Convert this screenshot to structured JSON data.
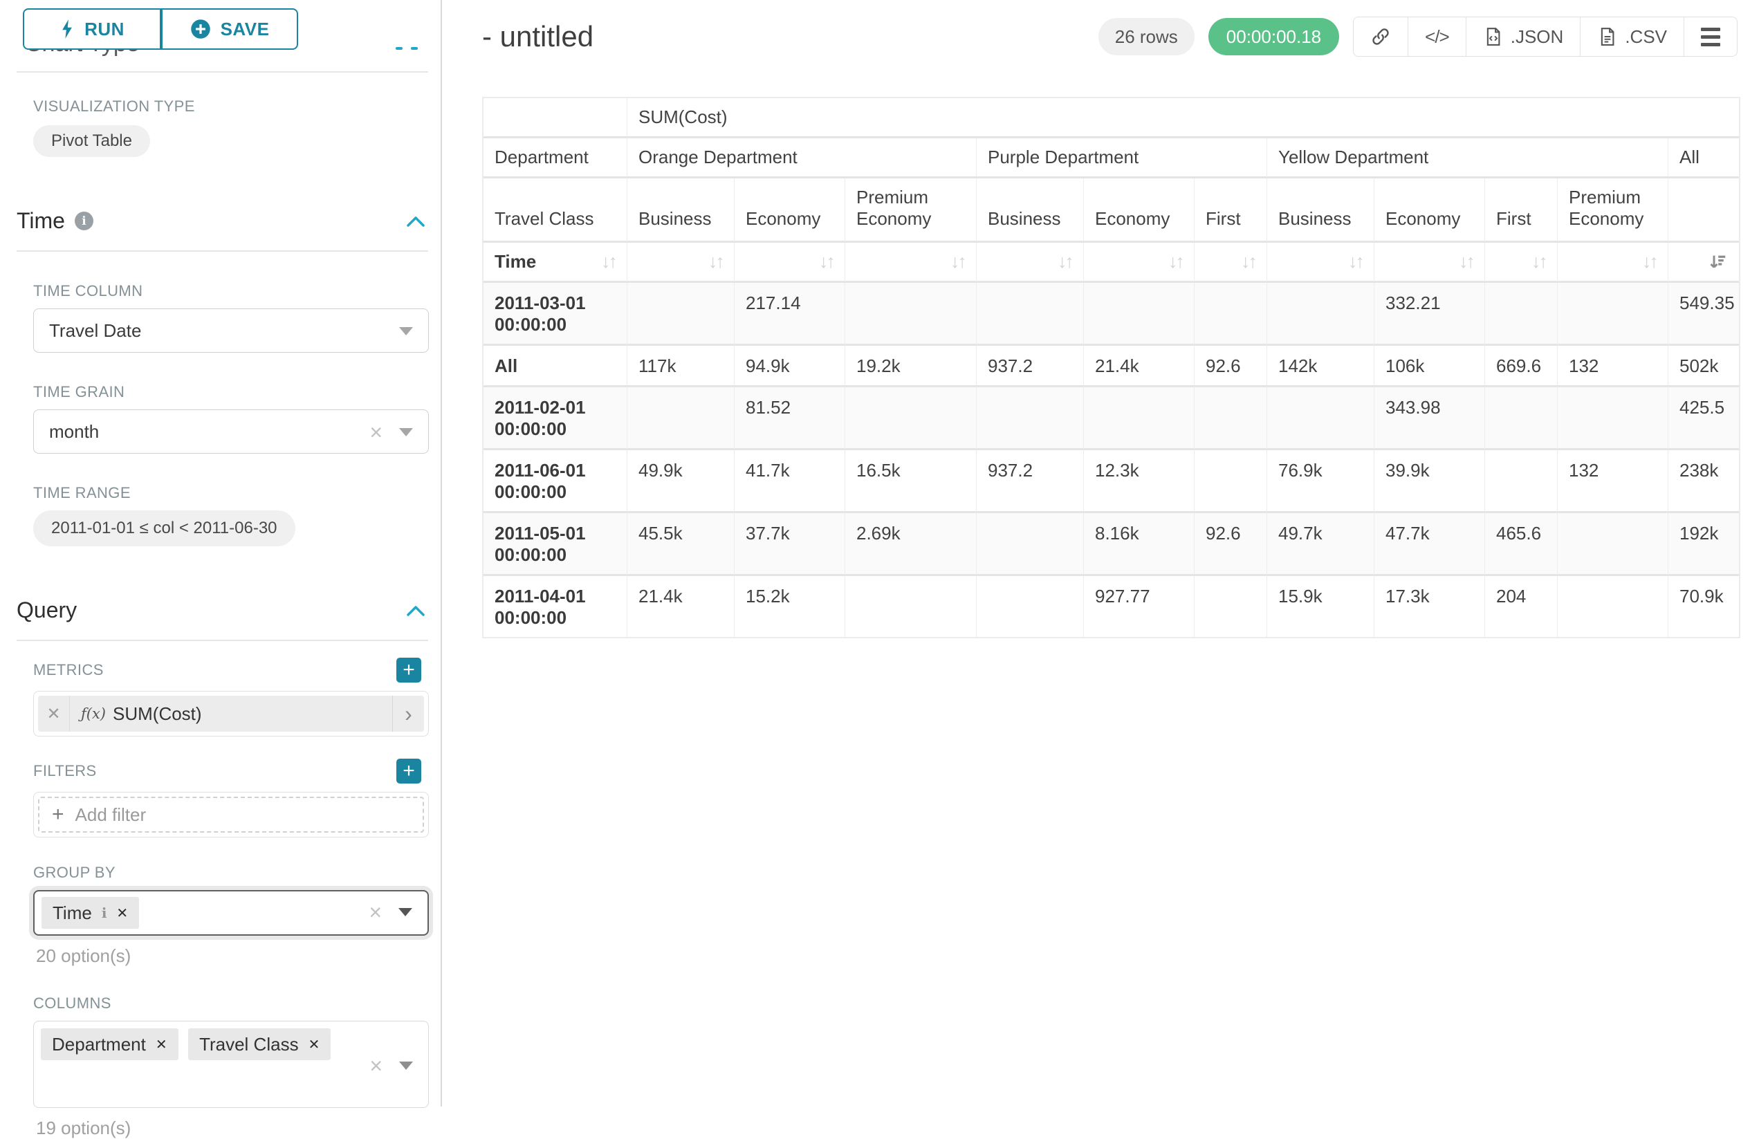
{
  "colors": {
    "accent": "#1a85a0",
    "primary_blue": "#20a7c9",
    "timer_green": "#5ac189"
  },
  "icons": {
    "run": "lightning-bolt",
    "save": "plus-circle",
    "info": "info-circle",
    "collapse": "chevron-up",
    "dropdown": "caret-down",
    "clear": "×",
    "remove-tag": "✕",
    "metric-expand": "›",
    "add": "+",
    "link": "chain-link",
    "embed": "</>",
    "json_file": "file-code",
    "csv_file": "file-lines",
    "menu": "hamburger",
    "sort": "↓↑",
    "sort_desc": "sort-amount-down"
  },
  "sidebar": {
    "run_label": "RUN",
    "save_label": "SAVE",
    "chart_type_heading": "Chart Type",
    "visualization_type_label": "VISUALIZATION TYPE",
    "visualization_type_value": "Pivot Table",
    "time_section": {
      "title": "Time",
      "time_column_label": "TIME COLUMN",
      "time_column_value": "Travel Date",
      "time_grain_label": "TIME GRAIN",
      "time_grain_value": "month",
      "time_range_label": "TIME RANGE",
      "time_range_value": "2011-01-01 ≤ col < 2011-06-30"
    },
    "query_section": {
      "title": "Query",
      "metrics_label": "METRICS",
      "metric_fx": "ƒ(x)",
      "metric_value": "SUM(Cost)",
      "filters_label": "FILTERS",
      "add_filter_label": "Add filter",
      "group_by_label": "GROUP BY",
      "group_by_tags": [
        "Time"
      ],
      "group_by_options_hint": "20 option(s)",
      "columns_label": "COLUMNS",
      "columns_tags": [
        "Department",
        "Travel Class"
      ],
      "columns_options_hint": "19 option(s)"
    }
  },
  "header": {
    "title": "- untitled",
    "row_count_badge": "26 rows",
    "timer_badge": "00:00:00.18",
    "json_label": ".JSON",
    "csv_label": ".CSV"
  },
  "chart_data": {
    "type": "table",
    "metric_header": "SUM(Cost)",
    "row_dimension": "Time",
    "col_dimension_label": "Department",
    "sub_dimension_label": "Travel Class",
    "column_groups": [
      {
        "label": "Orange Department",
        "children": [
          "Business",
          "Economy",
          "Premium Economy"
        ]
      },
      {
        "label": "Purple Department",
        "children": [
          "Business",
          "Economy",
          "First"
        ]
      },
      {
        "label": "Yellow Department",
        "children": [
          "Business",
          "Economy",
          "First",
          "Premium Economy"
        ]
      },
      {
        "label": "All",
        "children": [
          ""
        ]
      }
    ],
    "sorted_column": "All",
    "sort_direction": "desc",
    "rows": [
      {
        "label": "2011-03-01 00:00:00",
        "values": [
          "",
          "217.14",
          "",
          "",
          "",
          "",
          "",
          "332.21",
          "",
          "",
          "549.35"
        ]
      },
      {
        "label": "All",
        "values": [
          "117k",
          "94.9k",
          "19.2k",
          "937.2",
          "21.4k",
          "92.6",
          "142k",
          "106k",
          "669.6",
          "132",
          "502k"
        ]
      },
      {
        "label": "2011-02-01 00:00:00",
        "values": [
          "",
          "81.52",
          "",
          "",
          "",
          "",
          "",
          "343.98",
          "",
          "",
          "425.5"
        ]
      },
      {
        "label": "2011-06-01 00:00:00",
        "values": [
          "49.9k",
          "41.7k",
          "16.5k",
          "937.2",
          "12.3k",
          "",
          "76.9k",
          "39.9k",
          "",
          "132",
          "238k"
        ]
      },
      {
        "label": "2011-05-01 00:00:00",
        "values": [
          "45.5k",
          "37.7k",
          "2.69k",
          "",
          "8.16k",
          "92.6",
          "49.7k",
          "47.7k",
          "465.6",
          "",
          "192k"
        ]
      },
      {
        "label": "2011-04-01 00:00:00",
        "values": [
          "21.4k",
          "15.2k",
          "",
          "",
          "927.77",
          "",
          "15.9k",
          "17.3k",
          "204",
          "",
          "70.9k"
        ]
      }
    ]
  }
}
